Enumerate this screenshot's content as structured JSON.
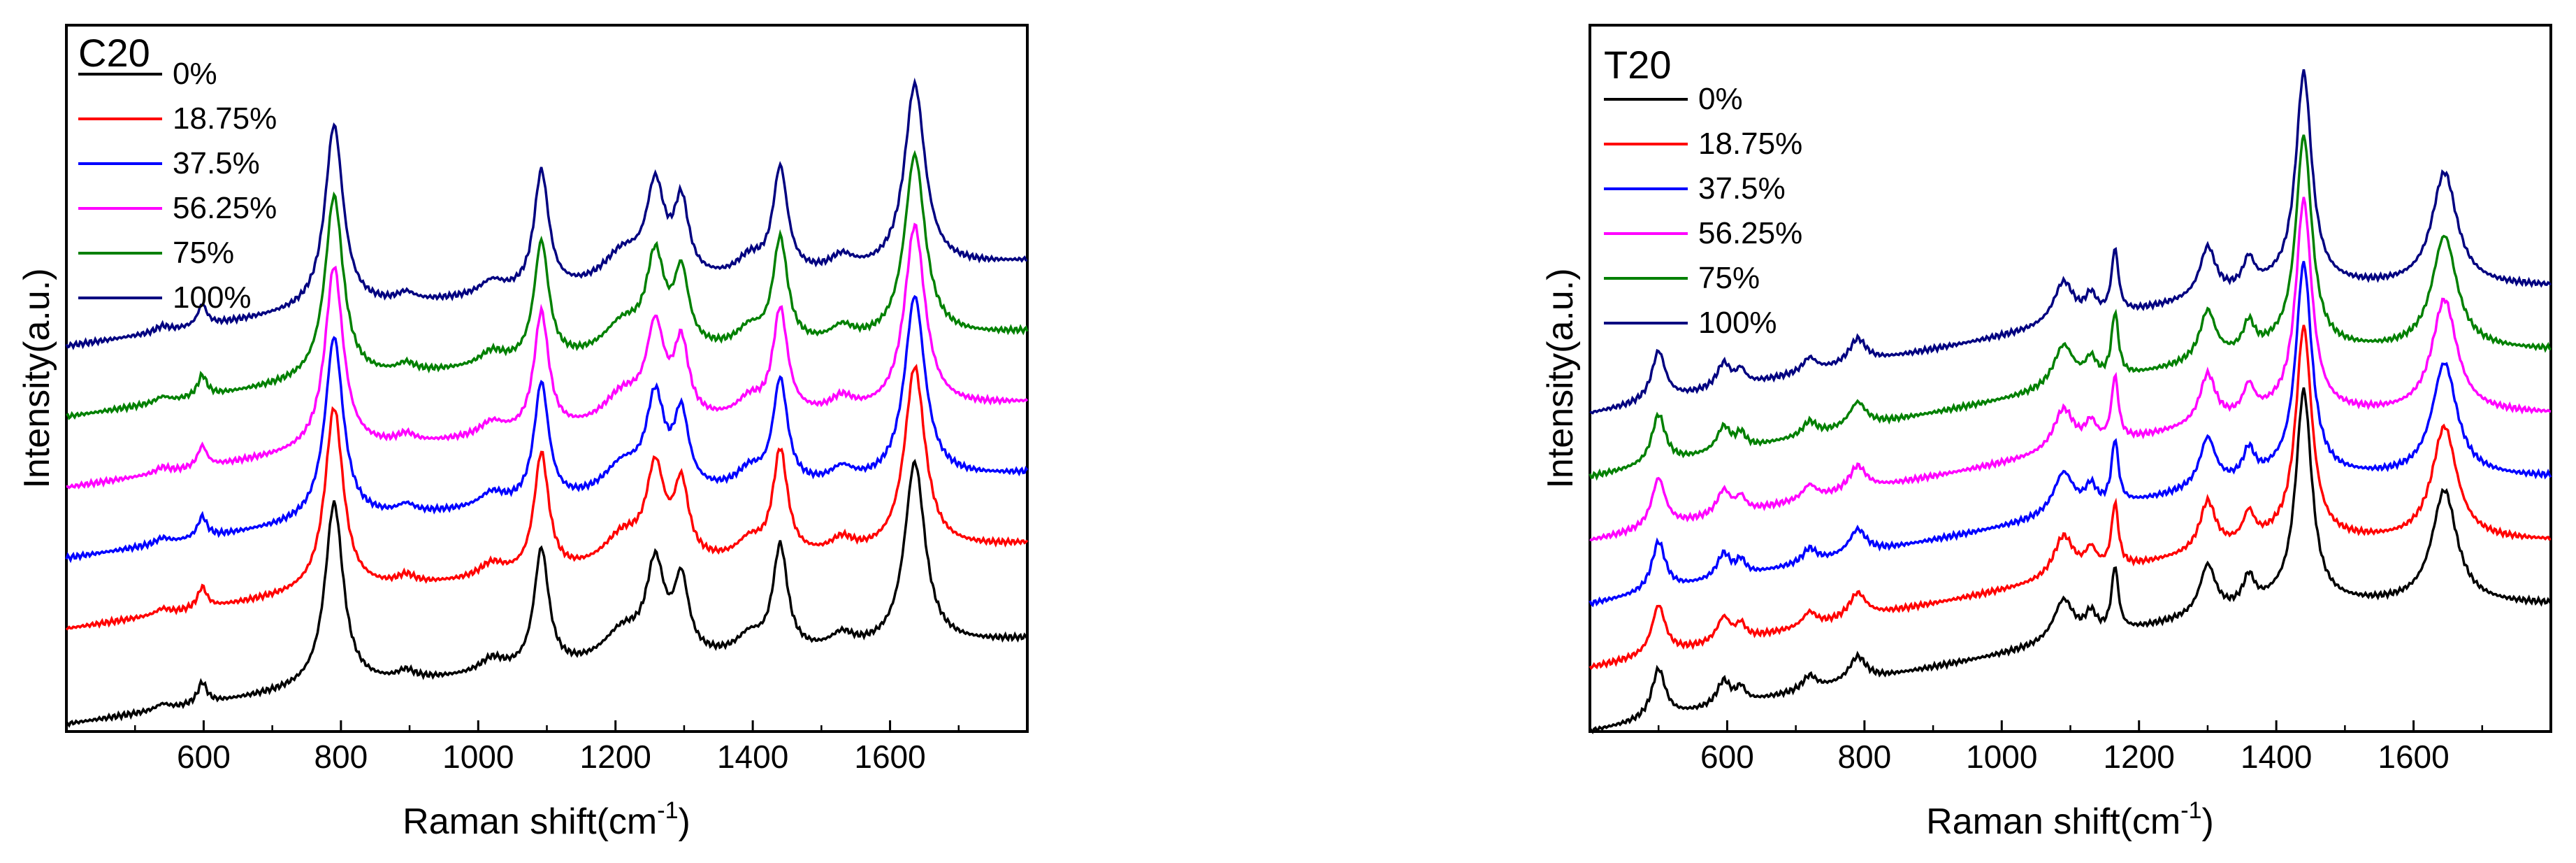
{
  "chart_data": [
    {
      "type": "line",
      "title": "C20",
      "xlabel": "Raman shift(cm",
      "xlabel_superscript": "-1",
      "xlabel_suffix": ")",
      "ylabel": "Intensity(a.u.)",
      "xlim": [
        400,
        1800
      ],
      "ylim": [
        0,
        10
      ],
      "xticks": [
        600,
        800,
        1000,
        1200,
        1400,
        1600
      ],
      "yticks": [],
      "legend_location": "top-left",
      "peaks": [
        {
          "x": 540,
          "h": 0.08,
          "w": 12
        },
        {
          "x": 598,
          "h": 0.3,
          "w": 8
        },
        {
          "x": 790,
          "h": 2.6,
          "w": 16
        },
        {
          "x": 895,
          "h": 0.12,
          "w": 15
        },
        {
          "x": 1020,
          "h": 0.2,
          "w": 22
        },
        {
          "x": 1092,
          "h": 1.7,
          "w": 13
        },
        {
          "x": 1210,
          "h": 0.45,
          "w": 35
        },
        {
          "x": 1258,
          "h": 1.3,
          "w": 16
        },
        {
          "x": 1296,
          "h": 1.05,
          "w": 13
        },
        {
          "x": 1395,
          "h": 0.25,
          "w": 22
        },
        {
          "x": 1440,
          "h": 1.5,
          "w": 13
        },
        {
          "x": 1530,
          "h": 0.2,
          "w": 20
        },
        {
          "x": 1636,
          "h": 2.6,
          "w": 18
        }
      ],
      "background": {
        "x0": 400,
        "x1": 1800,
        "start": 0.1,
        "end": 1.3,
        "knee": 760,
        "plateau": 0.6
      },
      "series": [
        {
          "name": "0%",
          "color": "#000000",
          "offset": 0.0,
          "scale": 1.0
        },
        {
          "name": "18.75%",
          "color": "#ff0000",
          "offset": 1.35,
          "scale": 1.0
        },
        {
          "name": "37.5%",
          "color": "#0000ff",
          "offset": 2.35,
          "scale": 1.0
        },
        {
          "name": "56.25%",
          "color": "#ff00ff",
          "offset": 3.35,
          "scale": 1.0
        },
        {
          "name": "75%",
          "color": "#008000",
          "offset": 4.35,
          "scale": 1.0
        },
        {
          "name": "100%",
          "color": "#000080",
          "offset": 5.35,
          "scale": 1.0
        }
      ]
    },
    {
      "type": "line",
      "title": "T20",
      "xlabel": "Raman shift(cm",
      "xlabel_superscript": "-1",
      "xlabel_suffix": ")",
      "ylabel": "Intensity(a.u.)",
      "xlim": [
        400,
        1800
      ],
      "ylim": [
        0,
        10
      ],
      "xticks": [
        600,
        800,
        1000,
        1200,
        1400,
        1600
      ],
      "yticks": [],
      "legend_location": "top-left",
      "peaks": [
        {
          "x": 500,
          "h": 0.7,
          "w": 12
        },
        {
          "x": 595,
          "h": 0.35,
          "w": 12
        },
        {
          "x": 620,
          "h": 0.2,
          "w": 8
        },
        {
          "x": 720,
          "h": 0.2,
          "w": 12
        },
        {
          "x": 790,
          "h": 0.35,
          "w": 15
        },
        {
          "x": 1090,
          "h": 0.6,
          "w": 18
        },
        {
          "x": 1130,
          "h": 0.3,
          "w": 10
        },
        {
          "x": 1165,
          "h": 0.9,
          "w": 6
        },
        {
          "x": 1300,
          "h": 0.7,
          "w": 14
        },
        {
          "x": 1360,
          "h": 0.4,
          "w": 10
        },
        {
          "x": 1440,
          "h": 3.0,
          "w": 14
        },
        {
          "x": 1645,
          "h": 1.6,
          "w": 22
        }
      ],
      "background": {
        "x0": 400,
        "x1": 1800,
        "start": 0.0,
        "end": 1.8,
        "knee": 1400,
        "plateau": 1.8
      },
      "series": [
        {
          "name": "0%",
          "color": "#000000",
          "offset": 0.0,
          "scale": 1.0
        },
        {
          "name": "18.75%",
          "color": "#ff0000",
          "offset": 0.9,
          "scale": 1.0
        },
        {
          "name": "37.5%",
          "color": "#0000ff",
          "offset": 1.8,
          "scale": 1.0
        },
        {
          "name": "56.25%",
          "color": "#ff00ff",
          "offset": 2.7,
          "scale": 1.0
        },
        {
          "name": "75%",
          "color": "#008000",
          "offset": 3.6,
          "scale": 1.0
        },
        {
          "name": "100%",
          "color": "#000080",
          "offset": 4.5,
          "scale": 1.0
        }
      ]
    }
  ]
}
